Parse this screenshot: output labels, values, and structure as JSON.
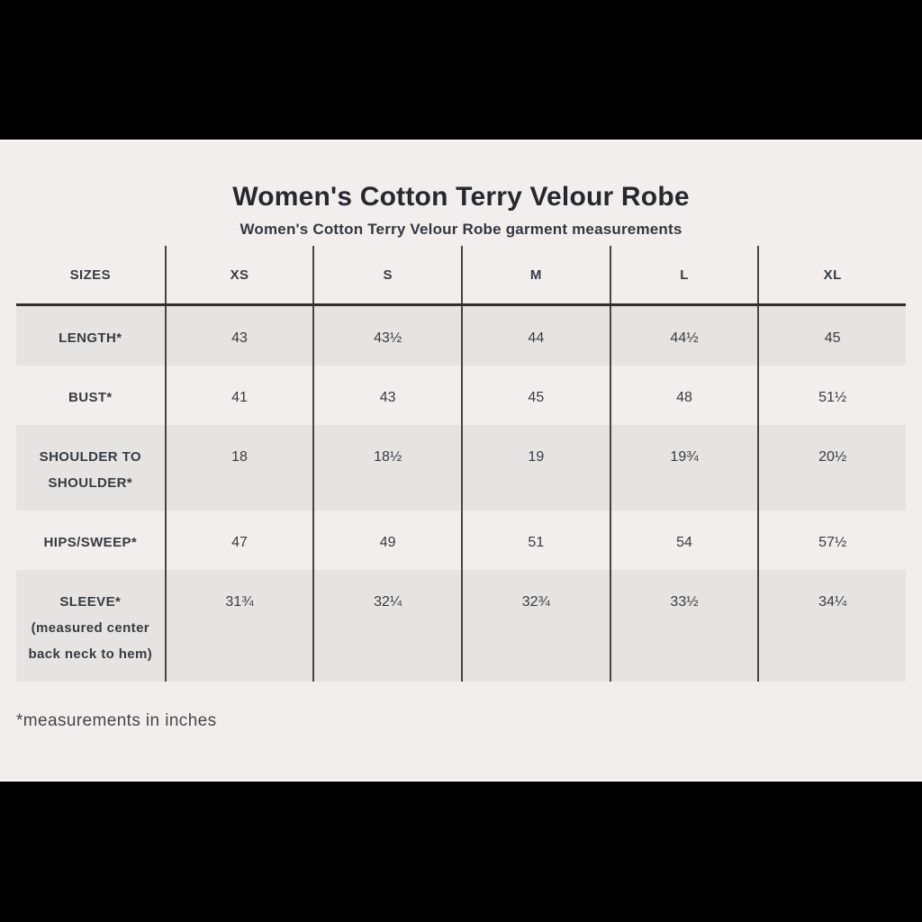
{
  "page": {
    "title": "Women's Cotton Terry Velour Robe",
    "subtitle": "Women's Cotton Terry Velour Robe garment measurements",
    "footnote": "*measurements in inches"
  },
  "colors": {
    "page_background": "#f2eeed",
    "shaded_row": "#e6e4e2",
    "divider": "#454545",
    "header_rule": "#2f2f2f",
    "text": "#363b42",
    "letterbox": "#000000"
  },
  "chart_data": {
    "type": "table",
    "title": "Women's Cotton Terry Velour Robe",
    "subtitle": "Women's Cotton Terry Velour Robe garment measurements",
    "footnote": "*measurements in inches",
    "columns": [
      "SIZES",
      "XS",
      "S",
      "M",
      "L",
      "XL"
    ],
    "rows": [
      {
        "label": "LENGTH*",
        "sublabel": "",
        "values": [
          "43",
          "43½",
          "44",
          "44½",
          "45"
        ]
      },
      {
        "label": "BUST*",
        "sublabel": "",
        "values": [
          "41",
          "43",
          "45",
          "48",
          "51½"
        ]
      },
      {
        "label": "SHOULDER TO SHOULDER*",
        "sublabel": "",
        "values": [
          "18",
          "18½",
          "19",
          "19¾",
          "20½"
        ]
      },
      {
        "label": "HIPS/SWEEP*",
        "sublabel": "",
        "values": [
          "47",
          "49",
          "51",
          "54",
          "57½"
        ]
      },
      {
        "label": "SLEEVE*",
        "sublabel": "(measured center back neck to hem)",
        "values": [
          "31¾",
          "32¼",
          "32¾",
          "33½",
          "34¼"
        ]
      }
    ]
  }
}
